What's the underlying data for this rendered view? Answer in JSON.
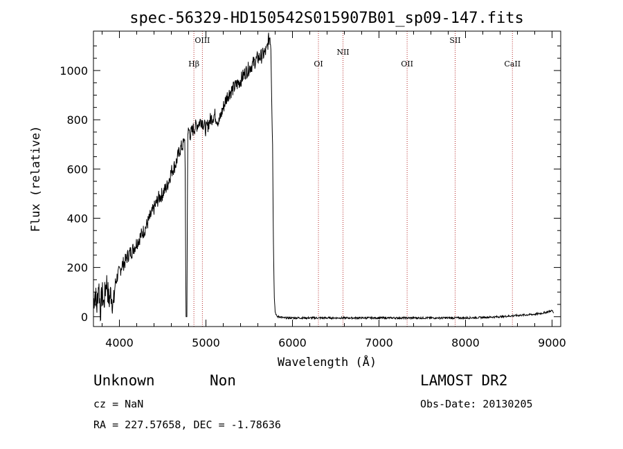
{
  "chart_data": {
    "type": "line",
    "title": "spec-56329-HD150542S015907B01_sp09-147.fits",
    "xlabel": "Wavelength (Å)",
    "ylabel": "Flux (relative)",
    "xlim": [
      3700,
      9100
    ],
    "ylim": [
      -40,
      1160
    ],
    "xticks": [
      4000,
      5000,
      6000,
      7000,
      8000,
      9000
    ],
    "yticks": [
      0,
      200,
      400,
      600,
      800,
      1000
    ],
    "grid": false,
    "series": [
      {
        "color": "#000000",
        "x": [
          3700,
          3720,
          3740,
          3760,
          3780,
          3800,
          3820,
          3850,
          3880,
          3900,
          3930,
          3950,
          3980,
          4000,
          4030,
          4060,
          4100,
          4150,
          4200,
          4250,
          4300,
          4350,
          4400,
          4450,
          4500,
          4550,
          4600,
          4650,
          4700,
          4740,
          4755,
          4760,
          4770,
          4780,
          4790,
          4800,
          4820,
          4850,
          4900,
          4950,
          5000,
          5050,
          5100,
          5150,
          5200,
          5250,
          5300,
          5350,
          5400,
          5450,
          5500,
          5550,
          5600,
          5650,
          5700,
          5720,
          5740,
          5750,
          5760,
          5770,
          5780,
          5790,
          5800,
          5820,
          5850,
          5900,
          6000,
          6200,
          6400,
          6600,
          6800,
          7000,
          7200,
          7400,
          7600,
          7800,
          8000,
          8200,
          8400,
          8600,
          8800,
          8900,
          8950,
          9000,
          9020
        ],
        "y": [
          60,
          100,
          40,
          140,
          20,
          100,
          50,
          150,
          60,
          100,
          40,
          130,
          170,
          180,
          210,
          220,
          250,
          270,
          300,
          330,
          360,
          400,
          440,
          480,
          500,
          530,
          590,
          620,
          680,
          700,
          720,
          600,
          0,
          0,
          740,
          760,
          740,
          760,
          780,
          800,
          760,
          800,
          820,
          790,
          850,
          900,
          920,
          940,
          960,
          990,
          1010,
          1030,
          1050,
          1060,
          1080,
          1120,
          1140,
          1100,
          900,
          700,
          300,
          80,
          20,
          0,
          0,
          -5,
          -5,
          -5,
          -5,
          -5,
          -5,
          -5,
          -5,
          -5,
          -5,
          -5,
          -5,
          -3,
          0,
          5,
          10,
          15,
          20,
          25,
          15
        ]
      }
    ],
    "annotations": [
      {
        "label": "Hβ",
        "x": 4861,
        "level": "low",
        "color": "#b22222"
      },
      {
        "label": "OIII",
        "x": 4959,
        "level": "high",
        "color": "#b22222"
      },
      {
        "label": "OI",
        "x": 6300,
        "level": "low",
        "color": "#b22222"
      },
      {
        "label": "NII",
        "x": 6584,
        "level": "mid",
        "color": "#b22222"
      },
      {
        "label": "OII",
        "x": 7325,
        "level": "low",
        "color": "#b22222"
      },
      {
        "label": "SII",
        "x": 7880,
        "level": "high",
        "color": "#b22222"
      },
      {
        "label": "CaII",
        "x": 8542,
        "level": "low",
        "color": "#b22222"
      }
    ]
  },
  "info": {
    "class": "Unknown",
    "subclass": "Non",
    "survey": "LAMOST DR2",
    "cz": "cz = NaN",
    "obsdate": "Obs-Date: 20130205",
    "radec": "RA = 227.57658, DEC =  -1.78636"
  }
}
